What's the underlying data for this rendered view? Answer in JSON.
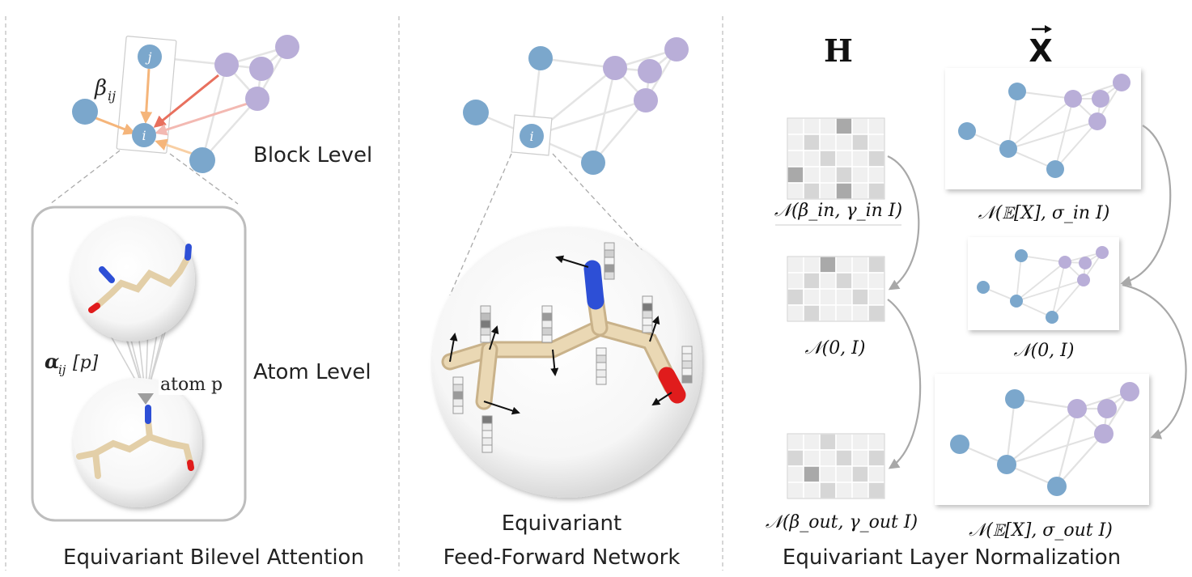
{
  "panels": {
    "attention": {
      "caption": "Equivariant Bilevel Attention",
      "block_level_label": "Block Level",
      "atom_level_label": "Atom Level",
      "beta_label": "β",
      "beta_sub": "ij",
      "alpha_label": "α",
      "alpha_sub": "ij",
      "alpha_suffix": "[p]",
      "atom_p_label": "atom p",
      "node_j": "j",
      "node_i": "i"
    },
    "ffn": {
      "caption_line1": "Equivariant",
      "caption_line2": "Feed-Forward Network",
      "node_i": "i"
    },
    "layernorm": {
      "caption": "Equivariant Layer Normalization",
      "h_header": "H",
      "x_header": "X",
      "h_in_dist": "𝒩(β_in, γ_in I)",
      "h_mid_dist": "𝒩(0, I)",
      "h_out_dist": "𝒩(β_out, γ_out I)",
      "x_in_dist": "𝒩(𝔼[X], σ_in I)",
      "x_mid_dist": "𝒩(0, I)",
      "x_out_dist": "𝒩(𝔼[X], σ_out I)"
    }
  },
  "colors": {
    "blue_node": "#7BA7CC",
    "purple_node": "#B9AED8",
    "edge": "#E2E2E2",
    "arrow_orange": "#F5B57A",
    "arrow_red": "#E8705E",
    "arrow_pink": "#F3B9B2",
    "frame": "#BDBDBD",
    "tan_stick": "#E3CFA8",
    "nitrogen": "#2D4FD6",
    "oxygen": "#E01C1C"
  },
  "grids": {
    "h_in": [
      [
        1,
        1,
        1,
        3,
        1,
        1
      ],
      [
        1,
        2,
        1,
        1,
        2,
        1
      ],
      [
        1,
        1,
        2,
        1,
        1,
        2
      ],
      [
        3,
        1,
        1,
        2,
        1,
        1
      ],
      [
        1,
        2,
        1,
        3,
        1,
        2
      ]
    ],
    "h_mid": [
      [
        1,
        1,
        3,
        1,
        1,
        2
      ],
      [
        1,
        2,
        1,
        2,
        1,
        1
      ],
      [
        2,
        1,
        1,
        1,
        2,
        1
      ],
      [
        1,
        2,
        1,
        1,
        1,
        2
      ]
    ],
    "h_out": [
      [
        1,
        1,
        2,
        1,
        1,
        1
      ],
      [
        2,
        1,
        1,
        2,
        1,
        2
      ],
      [
        1,
        3,
        1,
        1,
        2,
        1
      ],
      [
        1,
        1,
        2,
        1,
        1,
        2
      ]
    ]
  }
}
